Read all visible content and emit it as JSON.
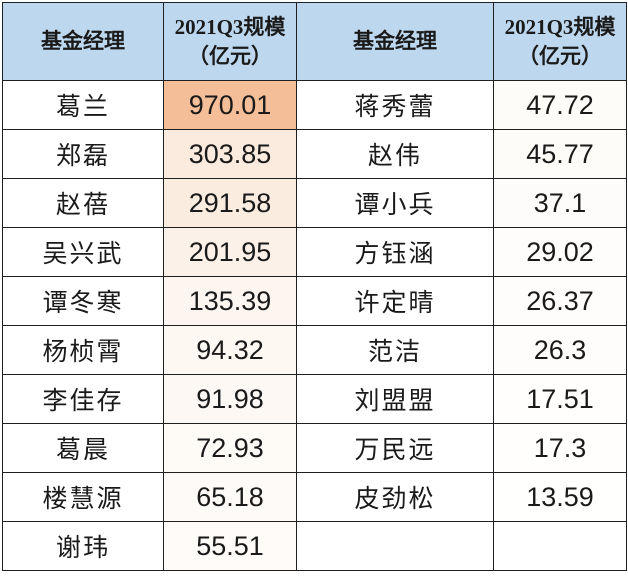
{
  "colors": {
    "header_bg": "#BDD7EE",
    "border": "#1f1f1f",
    "text": "#1a1a1a",
    "max_value_fill": "#F4BE98"
  },
  "table": {
    "header_manager": "基金经理",
    "header_scale_line1": "2021Q3规模",
    "header_scale_line2": "（亿元）",
    "left_rows": [
      {
        "name": "葛兰",
        "value": "970.01",
        "bg": "#F4BE98"
      },
      {
        "name": "郑磊",
        "value": "303.85",
        "bg": "#FBEBDE"
      },
      {
        "name": "赵蓓",
        "value": "291.58",
        "bg": "#FBECE0"
      },
      {
        "name": "吴兴武",
        "value": "201.95",
        "bg": "#FCF1E8"
      },
      {
        "name": "谭冬寒",
        "value": "135.39",
        "bg": "#FDF5EF"
      },
      {
        "name": "杨桢霄",
        "value": "94.32",
        "bg": "#FEF8F3"
      },
      {
        "name": "李佳存",
        "value": "91.98",
        "bg": "#FEF8F4"
      },
      {
        "name": "葛晨",
        "value": "72.93",
        "bg": "#FEFAF6"
      },
      {
        "name": "楼慧源",
        "value": "65.18",
        "bg": "#FEFAF7"
      },
      {
        "name": "谢玮",
        "value": "55.51",
        "bg": "#FEFBF8"
      }
    ],
    "right_rows": [
      {
        "name": "蒋秀蕾",
        "value": "47.72",
        "bg": "#FEFCF9"
      },
      {
        "name": "赵伟",
        "value": "45.77",
        "bg": "#FEFCF9"
      },
      {
        "name": "谭小兵",
        "value": "37.1",
        "bg": "#FEFCFA"
      },
      {
        "name": "方钰涵",
        "value": "29.02",
        "bg": "#FFFDFB"
      },
      {
        "name": "许定晴",
        "value": "26.37",
        "bg": "#FFFDFC"
      },
      {
        "name": "范洁",
        "value": "26.3",
        "bg": "#FFFDFC"
      },
      {
        "name": "刘盟盟",
        "value": "17.51",
        "bg": "#FFFEFD"
      },
      {
        "name": "万民远",
        "value": "17.3",
        "bg": "#FFFEFD"
      },
      {
        "name": "皮劲松",
        "value": "13.59",
        "bg": "#FFFFFE"
      },
      {
        "name": "",
        "value": "",
        "bg": "#FFFFFF"
      }
    ]
  },
  "chart_data": {
    "type": "table",
    "title": "2021Q3规模（亿元）按基金经理",
    "columns": [
      "基金经理",
      "2021Q3规模（亿元）",
      "基金经理",
      "2021Q3规模（亿元）"
    ],
    "series": [
      {
        "name": "基金经理规模",
        "categories": [
          "葛兰",
          "郑磊",
          "赵蓓",
          "吴兴武",
          "谭冬寒",
          "杨桢霄",
          "李佳存",
          "葛晨",
          "楼慧源",
          "谢玮",
          "蒋秀蕾",
          "赵伟",
          "谭小兵",
          "方钰涵",
          "许定晴",
          "范洁",
          "刘盟盟",
          "万民远",
          "皮劲松"
        ],
        "values": [
          970.01,
          303.85,
          291.58,
          201.95,
          135.39,
          94.32,
          91.98,
          72.93,
          65.18,
          55.51,
          47.72,
          45.77,
          37.1,
          29.02,
          26.37,
          26.3,
          17.51,
          17.3,
          13.59
        ]
      }
    ],
    "layout": "two side-by-side name/value column pairs, header blue #BDD7EE, value cells shaded by magnitude (orange color scale)"
  }
}
